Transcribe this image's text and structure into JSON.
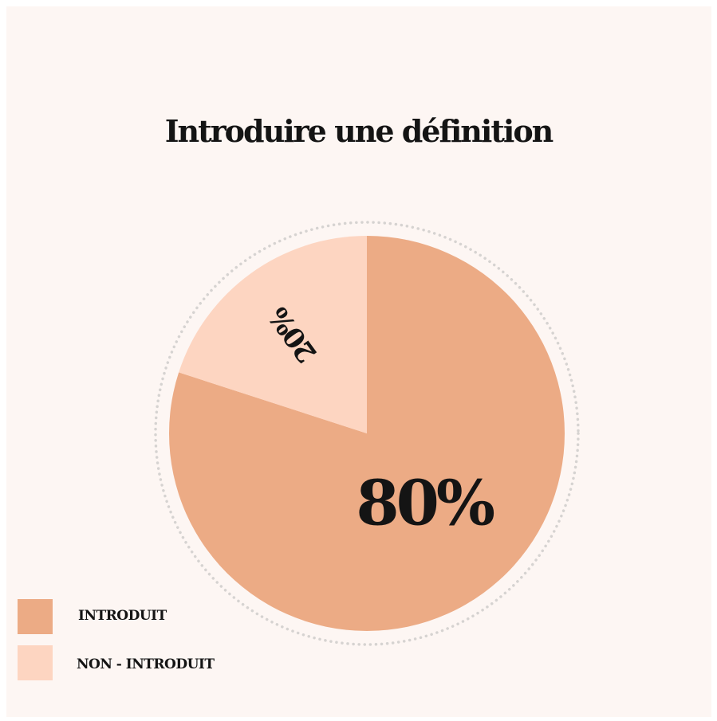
{
  "chart_data": {
    "type": "pie",
    "title": "Introduire une définition",
    "slices": [
      {
        "label": "INTRODUIT",
        "value": 80,
        "display": "80%",
        "color": "#ecab85"
      },
      {
        "label": "NON - INTRODUIT",
        "value": 20,
        "display": "20%",
        "color": "#fdd5c1"
      }
    ],
    "legend_position": "bottom-left"
  },
  "colors": {
    "background": "#fdf6f3",
    "ring": "#d6d3d1",
    "text": "#141414"
  }
}
